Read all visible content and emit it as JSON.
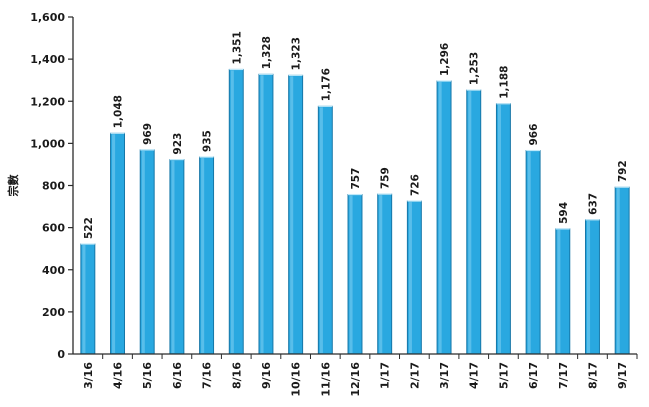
{
  "chart_data": {
    "type": "bar",
    "title": "",
    "xlabel": "",
    "ylabel": "宗數",
    "ylim": [
      0,
      1600
    ],
    "yticks": [
      0,
      200,
      400,
      600,
      800,
      1000,
      1200,
      1400,
      1600
    ],
    "ytick_labels": [
      "0",
      "200",
      "400",
      "600",
      "800",
      "1,000",
      "1,200",
      "1,400",
      "1,600"
    ],
    "grid": false,
    "legend": "none",
    "categories": [
      "3/16",
      "4/16",
      "5/16",
      "6/16",
      "7/16",
      "8/16",
      "9/16",
      "10/16",
      "11/16",
      "12/16",
      "1/17",
      "2/17",
      "3/17",
      "4/17",
      "5/17",
      "6/17",
      "7/17",
      "8/17",
      "9/17"
    ],
    "values": [
      522,
      1048,
      969,
      923,
      935,
      1351,
      1328,
      1323,
      1176,
      757,
      759,
      726,
      1296,
      1253,
      1188,
      966,
      594,
      637,
      792
    ],
    "value_labels": [
      "522",
      "1,048",
      "969",
      "923",
      "935",
      "1,351",
      "1,328",
      "1,323",
      "1,176",
      "757",
      "759",
      "726",
      "1,296",
      "1,253",
      "1,188",
      "966",
      "594",
      "637",
      "792"
    ],
    "colors": {
      "bar": "#29a8e0",
      "bar_edge": "#1677a8",
      "bar_highlight": "#7fd0f2",
      "axis": "#2b2b2b",
      "text": "#1a1a1a"
    }
  }
}
